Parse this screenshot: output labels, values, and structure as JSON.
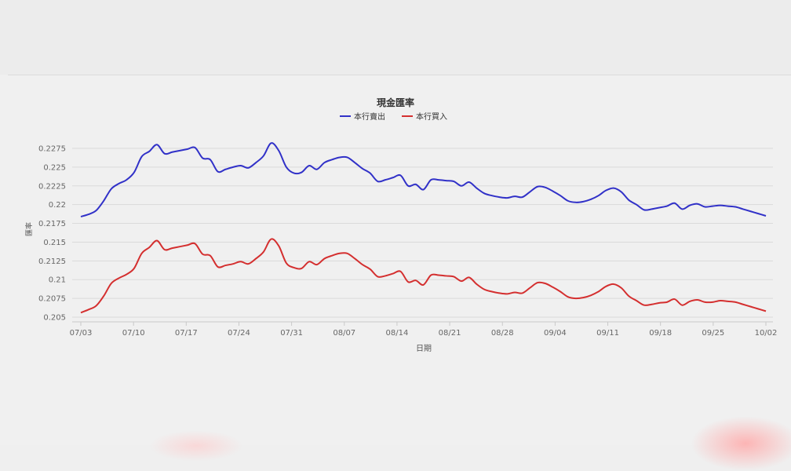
{
  "chart_data": {
    "type": "line",
    "title": "現金匯率",
    "xlabel": "日期",
    "ylabel": "匯率",
    "ylim": [
      0.205,
      0.2275
    ],
    "yticks": [
      "0.205",
      "0.2075",
      "0.21",
      "0.2125",
      "0.215",
      "0.2175",
      "0.22",
      "0.2225",
      "0.225",
      "0.2275"
    ],
    "xticks": [
      "07/03",
      "07/10",
      "07/17",
      "07/24",
      "07/31",
      "08/07",
      "08/14",
      "08/21",
      "08/28",
      "09/04",
      "09/11",
      "09/18",
      "09/25",
      "10/02"
    ],
    "legend_position": "top-center",
    "grid": true,
    "series": [
      {
        "name": "本行賣出",
        "color": "#3131c8",
        "values": [
          [
            0,
            0.2184
          ],
          [
            1,
            0.2187
          ],
          [
            2,
            0.2192
          ],
          [
            3,
            0.2205
          ],
          [
            4,
            0.2221
          ],
          [
            5,
            0.2228
          ],
          [
            6,
            0.2233
          ],
          [
            7,
            0.2243
          ],
          [
            8,
            0.2264
          ],
          [
            9,
            0.2271
          ],
          [
            10,
            0.228
          ],
          [
            11,
            0.2268
          ],
          [
            12,
            0.227
          ],
          [
            13,
            0.2272
          ],
          [
            14,
            0.2274
          ],
          [
            15,
            0.2276
          ],
          [
            16,
            0.2262
          ],
          [
            17,
            0.226
          ],
          [
            18,
            0.2244
          ],
          [
            19,
            0.2247
          ],
          [
            20,
            0.225
          ],
          [
            21,
            0.2252
          ],
          [
            22,
            0.2249
          ],
          [
            23,
            0.2256
          ],
          [
            24,
            0.2265
          ],
          [
            25,
            0.2282
          ],
          [
            26,
            0.2272
          ],
          [
            27,
            0.225
          ],
          [
            28,
            0.2242
          ],
          [
            29,
            0.2243
          ],
          [
            30,
            0.2252
          ],
          [
            31,
            0.2247
          ],
          [
            32,
            0.2256
          ],
          [
            33,
            0.226
          ],
          [
            34,
            0.2263
          ],
          [
            35,
            0.2263
          ],
          [
            36,
            0.2256
          ],
          [
            37,
            0.2248
          ],
          [
            38,
            0.2242
          ],
          [
            39,
            0.2231
          ],
          [
            40,
            0.2233
          ],
          [
            41,
            0.2236
          ],
          [
            42,
            0.2239
          ],
          [
            43,
            0.2225
          ],
          [
            44,
            0.2227
          ],
          [
            45,
            0.222
          ],
          [
            46,
            0.2233
          ],
          [
            47,
            0.2233
          ],
          [
            48,
            0.2232
          ],
          [
            49,
            0.2231
          ],
          [
            50,
            0.2225
          ],
          [
            51,
            0.223
          ],
          [
            52,
            0.2222
          ],
          [
            53,
            0.2215
          ],
          [
            54,
            0.2212
          ],
          [
            55,
            0.221
          ],
          [
            56,
            0.2209
          ],
          [
            57,
            0.2211
          ],
          [
            58,
            0.221
          ],
          [
            59,
            0.2217
          ],
          [
            60,
            0.2224
          ],
          [
            61,
            0.2223
          ],
          [
            62,
            0.2218
          ],
          [
            63,
            0.2212
          ],
          [
            64,
            0.2205
          ],
          [
            65,
            0.2203
          ],
          [
            66,
            0.2204
          ],
          [
            67,
            0.2207
          ],
          [
            68,
            0.2212
          ],
          [
            69,
            0.2219
          ],
          [
            70,
            0.2222
          ],
          [
            71,
            0.2217
          ],
          [
            72,
            0.2206
          ],
          [
            73,
            0.22
          ],
          [
            74,
            0.2193
          ],
          [
            75,
            0.2194
          ],
          [
            76,
            0.2196
          ],
          [
            77,
            0.2198
          ],
          [
            78,
            0.2202
          ],
          [
            79,
            0.2194
          ],
          [
            80,
            0.2199
          ],
          [
            81,
            0.2201
          ],
          [
            82,
            0.2197
          ],
          [
            83,
            0.2198
          ],
          [
            84,
            0.2199
          ],
          [
            85,
            0.2198
          ],
          [
            86,
            0.2197
          ],
          [
            87,
            0.2194
          ],
          [
            88,
            0.2191
          ],
          [
            89,
            0.2188
          ],
          [
            90,
            0.2185
          ]
        ]
      },
      {
        "name": "本行買入",
        "color": "#d42f2f",
        "values": [
          [
            0,
            0.2056
          ],
          [
            1,
            0.206
          ],
          [
            2,
            0.2065
          ],
          [
            3,
            0.2078
          ],
          [
            4,
            0.2095
          ],
          [
            5,
            0.2102
          ],
          [
            6,
            0.2107
          ],
          [
            7,
            0.2115
          ],
          [
            8,
            0.2135
          ],
          [
            9,
            0.2143
          ],
          [
            10,
            0.2152
          ],
          [
            11,
            0.214
          ],
          [
            12,
            0.2142
          ],
          [
            13,
            0.2144
          ],
          [
            14,
            0.2146
          ],
          [
            15,
            0.2148
          ],
          [
            16,
            0.2134
          ],
          [
            17,
            0.2132
          ],
          [
            18,
            0.2117
          ],
          [
            19,
            0.2119
          ],
          [
            20,
            0.2121
          ],
          [
            21,
            0.2124
          ],
          [
            22,
            0.2121
          ],
          [
            23,
            0.2128
          ],
          [
            24,
            0.2137
          ],
          [
            25,
            0.2154
          ],
          [
            26,
            0.2145
          ],
          [
            27,
            0.2122
          ],
          [
            28,
            0.2116
          ],
          [
            29,
            0.2115
          ],
          [
            30,
            0.2124
          ],
          [
            31,
            0.212
          ],
          [
            32,
            0.2128
          ],
          [
            33,
            0.2132
          ],
          [
            34,
            0.2135
          ],
          [
            35,
            0.2135
          ],
          [
            36,
            0.2128
          ],
          [
            37,
            0.212
          ],
          [
            38,
            0.2114
          ],
          [
            39,
            0.2104
          ],
          [
            40,
            0.2105
          ],
          [
            41,
            0.2108
          ],
          [
            42,
            0.2111
          ],
          [
            43,
            0.2097
          ],
          [
            44,
            0.2099
          ],
          [
            45,
            0.2093
          ],
          [
            46,
            0.2106
          ],
          [
            47,
            0.2106
          ],
          [
            48,
            0.2105
          ],
          [
            49,
            0.2104
          ],
          [
            50,
            0.2098
          ],
          [
            51,
            0.2103
          ],
          [
            52,
            0.2094
          ],
          [
            53,
            0.2087
          ],
          [
            54,
            0.2084
          ],
          [
            55,
            0.2082
          ],
          [
            56,
            0.2081
          ],
          [
            57,
            0.2083
          ],
          [
            58,
            0.2082
          ],
          [
            59,
            0.2089
          ],
          [
            60,
            0.2096
          ],
          [
            61,
            0.2095
          ],
          [
            62,
            0.209
          ],
          [
            63,
            0.2084
          ],
          [
            64,
            0.2077
          ],
          [
            65,
            0.2075
          ],
          [
            66,
            0.2076
          ],
          [
            67,
            0.2079
          ],
          [
            68,
            0.2084
          ],
          [
            69,
            0.2091
          ],
          [
            70,
            0.2094
          ],
          [
            71,
            0.2089
          ],
          [
            72,
            0.2078
          ],
          [
            73,
            0.2072
          ],
          [
            74,
            0.2066
          ],
          [
            75,
            0.2067
          ],
          [
            76,
            0.2069
          ],
          [
            77,
            0.207
          ],
          [
            78,
            0.2074
          ],
          [
            79,
            0.2066
          ],
          [
            80,
            0.2071
          ],
          [
            81,
            0.2073
          ],
          [
            82,
            0.207
          ],
          [
            83,
            0.207
          ],
          [
            84,
            0.2072
          ],
          [
            85,
            0.2071
          ],
          [
            86,
            0.207
          ],
          [
            87,
            0.2067
          ],
          [
            88,
            0.2064
          ],
          [
            89,
            0.2061
          ],
          [
            90,
            0.2058
          ]
        ]
      }
    ]
  }
}
